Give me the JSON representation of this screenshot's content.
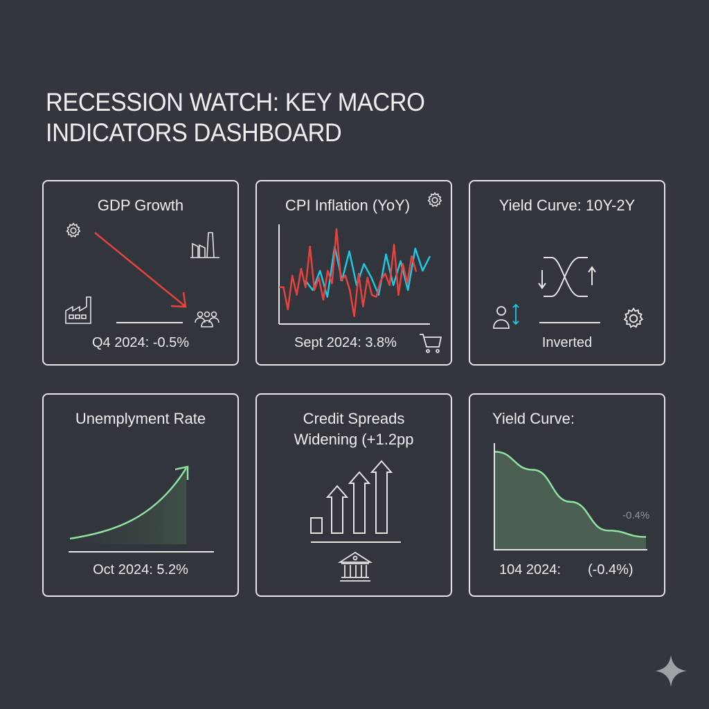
{
  "header": {
    "title_line1": "RECESSION WATCH: KEY MACRO",
    "title_line2": "INDICATORS DASHBOARD"
  },
  "colors": {
    "background": "#33373d",
    "card_border": "#e6e6e6",
    "negative_red": "#e8423f",
    "cpi_cyan": "#1ec8e0",
    "positive_green": "#8fe3a0",
    "area_fill": "#4a5e52"
  },
  "cards": [
    {
      "id": "gdp",
      "title": "GDP Growth",
      "value": "Q4 2024: -0.5%",
      "icons": [
        "gear-icon",
        "factory-icon",
        "chimney-icon",
        "people-icon",
        "down-trend-arrow"
      ]
    },
    {
      "id": "cpi",
      "title": "CPI Inflation (YoY)",
      "value": "Sept 2024: 3.8%",
      "icons": [
        "gear-icon",
        "shopping-cart-icon"
      ]
    },
    {
      "id": "yield_10y2y",
      "title": "Yield Curve: 10Y-2Y",
      "value": "Inverted",
      "icons": [
        "crossing-curves-icon",
        "person-updown-icon",
        "gear-icon"
      ]
    },
    {
      "id": "unemployment",
      "title": "Unemplyment Rate",
      "value": "Oct 2024: 5.2%",
      "icons": [
        "rising-curve-arrow"
      ]
    },
    {
      "id": "credit_spreads",
      "title_line1": "Credit Spreads",
      "title_line2": "Widening (+1.2pp",
      "icons": [
        "rising-arrows-icon",
        "bank-icon"
      ]
    },
    {
      "id": "yield_curve",
      "title": "Yield Curve:",
      "annotation": "-0.4%",
      "value_left": "104 2024:",
      "value_right": "(-0.4%)"
    }
  ],
  "chart_data": [
    {
      "type": "line",
      "title": "CPI Inflation (YoY)",
      "series": [
        {
          "name": "red",
          "color": "#e8423f",
          "values": [
            0.38,
            0.38,
            0.15,
            0.5,
            0.3,
            0.57,
            0.38,
            0.8,
            0.35,
            0.48,
            0.25,
            0.55,
            0.42,
            0.98,
            0.45,
            0.5,
            0.35,
            0.08,
            0.52,
            0.18,
            0.48,
            0.3,
            0.28,
            0.45,
            0.52,
            0.4,
            0.82,
            0.3,
            0.62,
            0.42,
            0.7,
            0.54
          ]
        },
        {
          "name": "cyan",
          "color": "#1ec8e0",
          "values": [
            0.45,
            0.35,
            0.55,
            0.28,
            0.8,
            0.45,
            0.75,
            0.4,
            0.62,
            0.48,
            0.3,
            0.72,
            0.4,
            0.65,
            0.35,
            0.78,
            0.55,
            0.7
          ]
        }
      ],
      "xlabel": "",
      "ylabel": "",
      "annotation": "Sept 2024: 3.8%"
    },
    {
      "type": "area",
      "title": "Yield Curve:",
      "x": [
        0,
        0.25,
        0.5,
        0.75,
        1.0
      ],
      "values": [
        0.92,
        0.75,
        0.45,
        0.18,
        0.12
      ],
      "annotation": "-0.4%",
      "footer": "104 2024: (-0.4%)"
    },
    {
      "type": "line",
      "title": "Unemplyment Rate",
      "x": [
        0,
        0.25,
        0.5,
        0.75,
        1.0
      ],
      "values": [
        0.05,
        0.15,
        0.32,
        0.6,
        1.0
      ],
      "footer": "Oct 2024: 5.2%"
    }
  ]
}
